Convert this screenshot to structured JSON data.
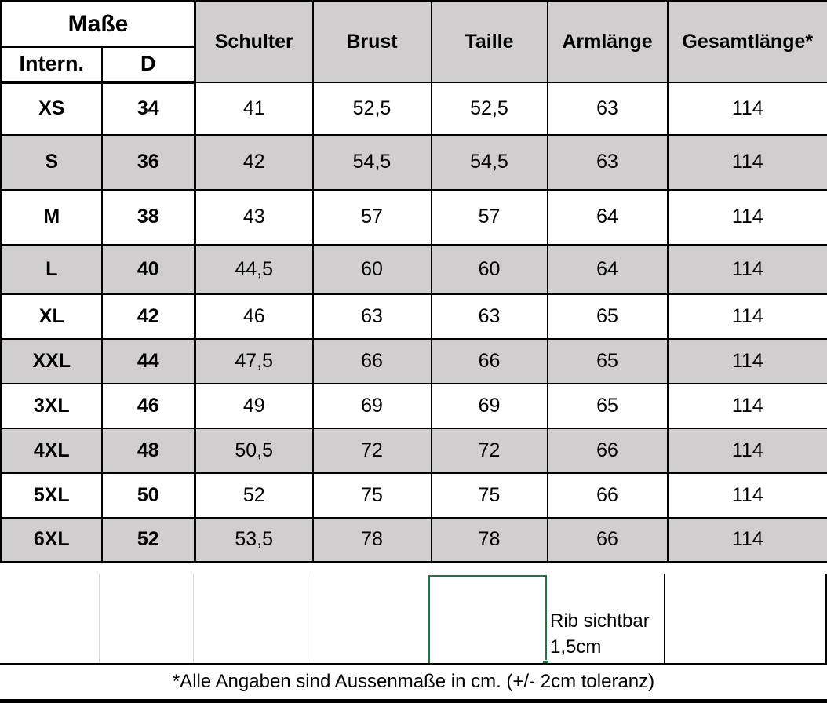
{
  "table": {
    "title": "Maße",
    "sub_headers": [
      "Intern.",
      "D"
    ],
    "measure_headers": [
      "Schulter",
      "Brust",
      "Taille",
      "Armlänge",
      "Gesamtlänge*"
    ],
    "rows": [
      {
        "intl": "XS",
        "d": "34",
        "values": [
          "41",
          "52,5",
          "52,5",
          "63",
          "114"
        ]
      },
      {
        "intl": "S",
        "d": "36",
        "values": [
          "42",
          "54,5",
          "54,5",
          "63",
          "114"
        ]
      },
      {
        "intl": "M",
        "d": "38",
        "values": [
          "43",
          "57",
          "57",
          "64",
          "114"
        ]
      },
      {
        "intl": "L",
        "d": "40",
        "values": [
          "44,5",
          "60",
          "60",
          "64",
          "114"
        ]
      },
      {
        "intl": "XL",
        "d": "42",
        "values": [
          "46",
          "63",
          "63",
          "65",
          "114"
        ]
      },
      {
        "intl": "XXL",
        "d": "44",
        "values": [
          "47,5",
          "66",
          "66",
          "65",
          "114"
        ]
      },
      {
        "intl": "3XL",
        "d": "46",
        "values": [
          "49",
          "69",
          "69",
          "65",
          "114"
        ]
      },
      {
        "intl": "4XL",
        "d": "48",
        "values": [
          "50,5",
          "72",
          "72",
          "66",
          "114"
        ]
      },
      {
        "intl": "5XL",
        "d": "50",
        "values": [
          "52",
          "75",
          "75",
          "66",
          "114"
        ]
      },
      {
        "intl": "6XL",
        "d": "52",
        "values": [
          "53,5",
          "78",
          "78",
          "66",
          "114"
        ]
      }
    ]
  },
  "notes": {
    "rib_line1": "Rib sichtbar",
    "rib_line2": "1,5cm",
    "footer": "*Alle Angaben sind Aussenmaße in cm. (+/- 2cm toleranz)"
  },
  "colors": {
    "header_bg": "#d0cece",
    "row_alt_bg": "#d0cece",
    "selection_green": "#217346",
    "gridline_gray": "#d9d9d9",
    "border_black": "#000000"
  }
}
